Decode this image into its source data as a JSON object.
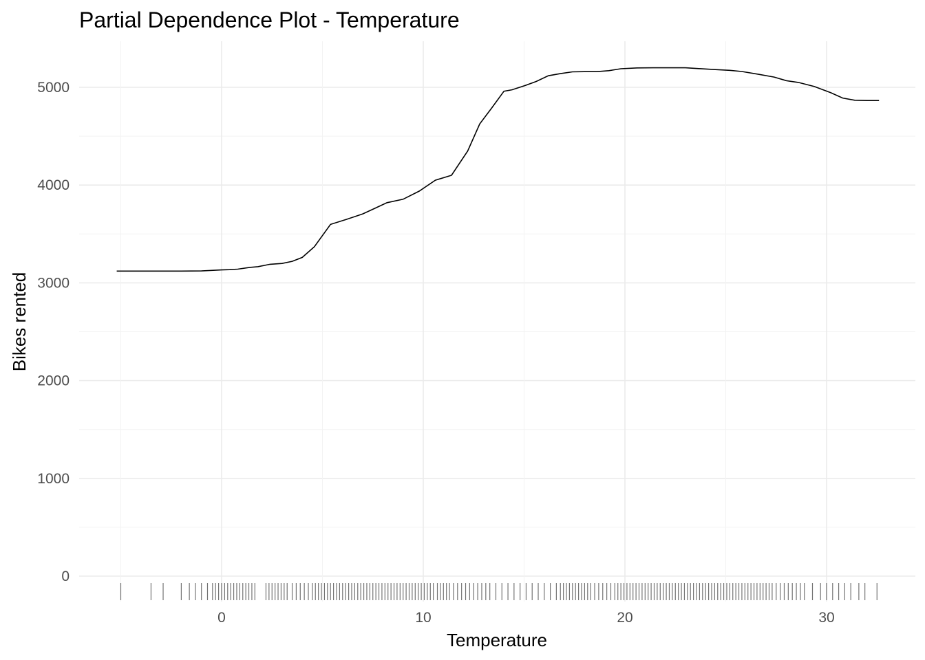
{
  "chart_data": {
    "type": "line",
    "title": "Partial Dependence Plot - Temperature",
    "xlabel": "Temperature",
    "ylabel": "Bikes rented",
    "xlim": [
      -5.5,
      34.5
    ],
    "ylim": [
      0,
      5250
    ],
    "x_ticks": [
      0,
      10,
      20,
      30
    ],
    "y_ticks": [
      0,
      1000,
      2000,
      3000,
      4000,
      5000
    ],
    "grid": true,
    "legend": "none",
    "line_color": "#000000",
    "series": [
      {
        "x": [
          -5.2,
          -4.0,
          -3.0,
          -2.0,
          -1.0,
          0.0,
          0.4,
          0.8,
          1.4,
          1.8,
          2.4,
          3.0,
          3.5,
          4.0,
          4.6,
          5.4,
          6.2,
          7.0,
          7.6,
          8.2,
          9.0,
          9.8,
          10.6,
          11.4,
          12.2,
          12.8,
          13.4,
          14.0,
          14.4,
          15.0,
          15.6,
          16.2,
          16.8,
          17.4,
          18.0,
          18.6,
          19.2,
          19.8,
          20.6,
          21.4,
          22.2,
          23.0,
          23.6,
          24.4,
          25.2,
          25.8,
          26.6,
          27.4,
          28.0,
          28.6,
          29.4,
          30.2,
          30.8,
          31.4,
          32.0,
          32.6
        ],
        "y": [
          3120,
          3120,
          3120,
          3120,
          3122,
          3132,
          3135,
          3140,
          3158,
          3165,
          3190,
          3198,
          3220,
          3260,
          3370,
          3598,
          3650,
          3705,
          3762,
          3820,
          3855,
          3938,
          4050,
          4100,
          4348,
          4625,
          4790,
          4960,
          4975,
          5015,
          5060,
          5118,
          5140,
          5158,
          5160,
          5160,
          5170,
          5190,
          5198,
          5200,
          5200,
          5200,
          5192,
          5182,
          5174,
          5162,
          5134,
          5105,
          5068,
          5050,
          5008,
          4945,
          4890,
          4868,
          4865,
          4865
        ]
      }
    ],
    "rug": [
      -5.0,
      -3.5,
      -2.9,
      -2.0,
      -1.6,
      -1.3,
      -1.0,
      -0.7,
      -0.45,
      -0.3,
      -0.15,
      0.0,
      0.15,
      0.3,
      0.45,
      0.6,
      0.75,
      0.9,
      1.05,
      1.2,
      1.35,
      1.5,
      1.65,
      2.2,
      2.35,
      2.5,
      2.65,
      2.8,
      2.95,
      3.1,
      3.25,
      3.5,
      3.7,
      3.9,
      4.1,
      4.3,
      4.5,
      4.65,
      4.8,
      4.95,
      5.1,
      5.25,
      5.4,
      5.55,
      5.7,
      5.85,
      6.0,
      6.15,
      6.3,
      6.45,
      6.6,
      6.75,
      6.9,
      7.05,
      7.2,
      7.35,
      7.5,
      7.65,
      7.8,
      7.95,
      8.1,
      8.25,
      8.4,
      8.55,
      8.7,
      8.85,
      9.0,
      9.15,
      9.3,
      9.45,
      9.6,
      9.75,
      9.9,
      10.05,
      10.2,
      10.35,
      10.5,
      10.7,
      10.85,
      11.0,
      11.15,
      11.3,
      11.5,
      11.7,
      11.9,
      12.1,
      12.3,
      12.5,
      12.7,
      12.9,
      13.1,
      13.3,
      13.6,
      13.9,
      14.2,
      14.5,
      14.8,
      15.1,
      15.4,
      15.7,
      16.0,
      16.3,
      16.6,
      16.8,
      16.95,
      17.1,
      17.25,
      17.4,
      17.55,
      17.7,
      17.85,
      18.0,
      18.15,
      18.3,
      18.5,
      18.7,
      18.9,
      19.1,
      19.3,
      19.5,
      19.65,
      19.8,
      19.95,
      20.1,
      20.25,
      20.4,
      20.55,
      20.7,
      20.85,
      21.0,
      21.15,
      21.3,
      21.45,
      21.6,
      21.75,
      21.9,
      22.05,
      22.2,
      22.35,
      22.5,
      22.65,
      22.8,
      22.95,
      23.1,
      23.25,
      23.4,
      23.55,
      23.7,
      23.85,
      24.0,
      24.15,
      24.3,
      24.45,
      24.6,
      24.75,
      24.9,
      25.05,
      25.2,
      25.35,
      25.5,
      25.65,
      25.8,
      25.95,
      26.1,
      26.25,
      26.4,
      26.55,
      26.7,
      26.85,
      27.0,
      27.15,
      27.3,
      27.5,
      27.7,
      27.9,
      28.1,
      28.3,
      28.5,
      28.7,
      28.9,
      29.3,
      29.7,
      30.0,
      30.3,
      30.6,
      30.9,
      31.2,
      31.6,
      31.9,
      32.5
    ]
  }
}
